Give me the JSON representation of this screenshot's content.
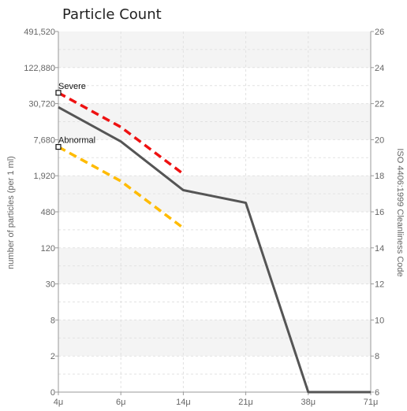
{
  "chart_data": {
    "type": "line",
    "title": "Particle Count",
    "xlabel": "",
    "ylabel": "number of particles (per 1 ml)",
    "y2label": "ISO 4406:1999 Cleanliness Code",
    "categories": [
      "4μ",
      "6μ",
      "14μ",
      "21μ",
      "38μ",
      "71μ"
    ],
    "y_ticks": [
      "0",
      "2",
      "8",
      "30",
      "120",
      "480",
      "1,920",
      "7,680",
      "30,720",
      "122,880",
      "491,520"
    ],
    "y2_ticks": [
      "6",
      "8",
      "10",
      "12",
      "14",
      "16",
      "18",
      "20",
      "22",
      "24",
      "26"
    ],
    "ylim_code": [
      6,
      26
    ],
    "grid": true,
    "series": [
      {
        "name": "",
        "color": "#555555",
        "dash": "solid",
        "codes": [
          21.8,
          19.9,
          17.2,
          16.5,
          6,
          6
        ]
      },
      {
        "name": "",
        "color": "#ee1111",
        "dash": "dashed",
        "codes": [
          22.6,
          20.7,
          18.1,
          null,
          null,
          null
        ]
      },
      {
        "name": "",
        "color": "#ffbb00",
        "dash": "dashed",
        "codes": [
          19.6,
          17.7,
          15.1,
          null,
          null,
          null
        ]
      }
    ],
    "annotations": [
      {
        "text": "Severe",
        "category": 0,
        "code": 22.6
      },
      {
        "text": "Abnormal",
        "category": 0,
        "code": 19.6
      }
    ]
  }
}
